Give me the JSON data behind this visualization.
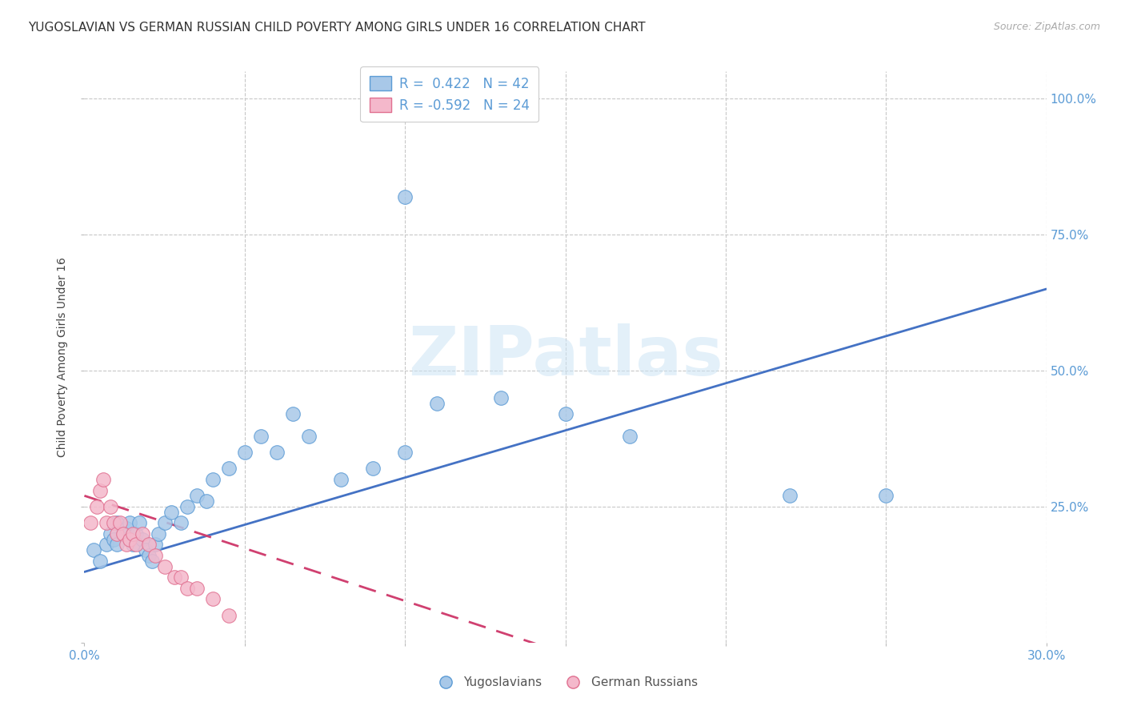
{
  "title": "YUGOSLAVIAN VS GERMAN RUSSIAN CHILD POVERTY AMONG GIRLS UNDER 16 CORRELATION CHART",
  "source": "Source: ZipAtlas.com",
  "ylabel": "Child Poverty Among Girls Under 16",
  "xlim": [
    0.0,
    0.3
  ],
  "ylim": [
    0.0,
    1.05
  ],
  "R_blue": 0.422,
  "N_blue": 42,
  "R_pink": -0.592,
  "N_pink": 24,
  "watermark": "ZIPatlas",
  "blue_color": "#a8c8e8",
  "blue_edge_color": "#5b9bd5",
  "pink_color": "#f4b8cb",
  "pink_edge_color": "#e07090",
  "blue_line_color": "#4472c4",
  "pink_line_color": "#d04070",
  "grid_color": "#c8c8c8",
  "text_color": "#444444",
  "axis_tick_color": "#5b9bd5",
  "background_color": "#ffffff",
  "blue_x": [
    0.003,
    0.005,
    0.007,
    0.008,
    0.009,
    0.01,
    0.01,
    0.012,
    0.013,
    0.014,
    0.015,
    0.016,
    0.017,
    0.018,
    0.019,
    0.02,
    0.021,
    0.022,
    0.023,
    0.025,
    0.027,
    0.03,
    0.032,
    0.035,
    0.038,
    0.04,
    0.045,
    0.05,
    0.055,
    0.06,
    0.065,
    0.07,
    0.08,
    0.09,
    0.1,
    0.11,
    0.13,
    0.15,
    0.17,
    0.22,
    0.25,
    0.1
  ],
  "blue_y": [
    0.17,
    0.15,
    0.18,
    0.2,
    0.19,
    0.22,
    0.18,
    0.2,
    0.21,
    0.22,
    0.18,
    0.2,
    0.22,
    0.19,
    0.17,
    0.16,
    0.15,
    0.18,
    0.2,
    0.22,
    0.24,
    0.22,
    0.25,
    0.27,
    0.26,
    0.3,
    0.32,
    0.35,
    0.38,
    0.35,
    0.42,
    0.38,
    0.3,
    0.32,
    0.35,
    0.44,
    0.45,
    0.42,
    0.38,
    0.27,
    0.27,
    0.82
  ],
  "pink_x": [
    0.002,
    0.004,
    0.005,
    0.006,
    0.007,
    0.008,
    0.009,
    0.01,
    0.011,
    0.012,
    0.013,
    0.014,
    0.015,
    0.016,
    0.018,
    0.02,
    0.022,
    0.025,
    0.028,
    0.03,
    0.032,
    0.035,
    0.04,
    0.045
  ],
  "pink_y": [
    0.22,
    0.25,
    0.28,
    0.3,
    0.22,
    0.25,
    0.22,
    0.2,
    0.22,
    0.2,
    0.18,
    0.19,
    0.2,
    0.18,
    0.2,
    0.18,
    0.16,
    0.14,
    0.12,
    0.12,
    0.1,
    0.1,
    0.08,
    0.05
  ],
  "blue_trend_x": [
    0.0,
    0.3
  ],
  "blue_trend_y": [
    0.13,
    0.65
  ],
  "pink_trend_x": [
    0.0,
    0.15
  ],
  "pink_trend_y": [
    0.27,
    -0.02
  ]
}
